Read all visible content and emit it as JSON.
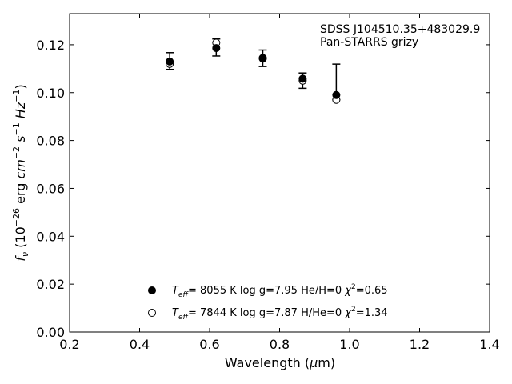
{
  "chart_data": {
    "type": "scatter",
    "title": "",
    "xlabel": "Wavelength (μm)",
    "ylabel": "f_ν (10^-26 erg cm^-2 s^-1 Hz^-1)",
    "xlim": [
      0.2,
      1.4
    ],
    "ylim": [
      0.0,
      0.133
    ],
    "xticks": [
      "0.2",
      "0.4",
      "0.6",
      "0.8",
      "1.0",
      "1.2",
      "1.4"
    ],
    "yticks": [
      "0.00",
      "0.02",
      "0.04",
      "0.06",
      "0.08",
      "0.10",
      "0.12"
    ],
    "annotations": [
      "SDSS J104510.35+483029.9",
      "Pan-STARRS grizy"
    ],
    "observed": {
      "x": [
        0.486,
        0.619,
        0.752,
        0.866,
        0.962
      ],
      "y": [
        0.1132,
        0.1186,
        0.1144,
        0.1052,
        0.0974
      ],
      "yerr_low": [
        0.0035,
        0.0033,
        0.0035,
        0.0034,
        0.0004
      ],
      "yerr_high": [
        0.0035,
        0.0038,
        0.0034,
        0.003,
        0.0145
      ]
    },
    "series": [
      {
        "marker": "filled-circle",
        "label": "Teff=  8055 K  log g=7.95  He/H=0  χ²=0.65",
        "x": [
          0.486,
          0.619,
          0.752,
          0.866,
          0.962
        ],
        "y": [
          0.113,
          0.1186,
          0.1145,
          0.1058,
          0.099
        ]
      },
      {
        "marker": "open-circle",
        "label": "Teff=  7844 K  log g=7.87  H/He=0  χ²=1.34",
        "x": [
          0.486,
          0.619,
          0.752,
          0.866,
          0.962
        ],
        "y": [
          0.112,
          0.1208,
          0.1142,
          0.105,
          0.097
        ]
      }
    ],
    "legend_position": "bottom-center"
  }
}
